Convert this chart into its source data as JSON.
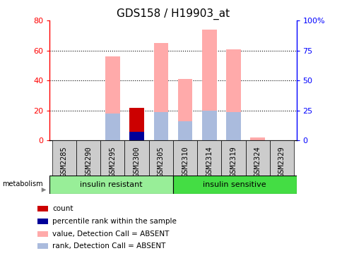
{
  "title": "GDS158 / H19903_at",
  "samples": [
    "GSM2285",
    "GSM2290",
    "GSM2295",
    "GSM2300",
    "GSM2305",
    "GSM2310",
    "GSM2314",
    "GSM2319",
    "GSM2324",
    "GSM2329"
  ],
  "value_absent": [
    0,
    0,
    56,
    0,
    65,
    41,
    74,
    61,
    2,
    0
  ],
  "rank_absent": [
    0,
    0,
    18,
    0,
    19,
    13,
    20,
    19,
    0,
    0
  ],
  "count_value": [
    0,
    0,
    0,
    22,
    0,
    0,
    0,
    0,
    0,
    0
  ],
  "percentile_rank": [
    0,
    0,
    0,
    6,
    0,
    0,
    0,
    0,
    0,
    0
  ],
  "ylim_left": [
    0,
    80
  ],
  "ylim_right": [
    0,
    100
  ],
  "yticks_left": [
    0,
    20,
    40,
    60,
    80
  ],
  "yticks_right": [
    0,
    25,
    50,
    75,
    100
  ],
  "ytick_labels_right": [
    "0",
    "25",
    "50",
    "75",
    "100%"
  ],
  "group1_label": "insulin resistant",
  "group2_label": "insulin sensitive",
  "group1_count": 5,
  "group2_count": 5,
  "group1_color": "#98ee98",
  "group2_color": "#44dd44",
  "metabolism_label": "metabolism",
  "legend_items": [
    {
      "label": "count",
      "color": "#cc0000"
    },
    {
      "label": "percentile rank within the sample",
      "color": "#000099"
    },
    {
      "label": "value, Detection Call = ABSENT",
      "color": "#ffaaaa"
    },
    {
      "label": "rank, Detection Call = ABSENT",
      "color": "#aabbdd"
    }
  ],
  "bar_width": 0.6,
  "tick_area_color": "#cccccc",
  "bar_color_value_absent": "#ffaaaa",
  "bar_color_rank_absent": "#aabbdd",
  "bar_color_count": "#cc0000",
  "bar_color_percentile": "#000099",
  "title_fontsize": 11,
  "axis_fontsize": 8
}
